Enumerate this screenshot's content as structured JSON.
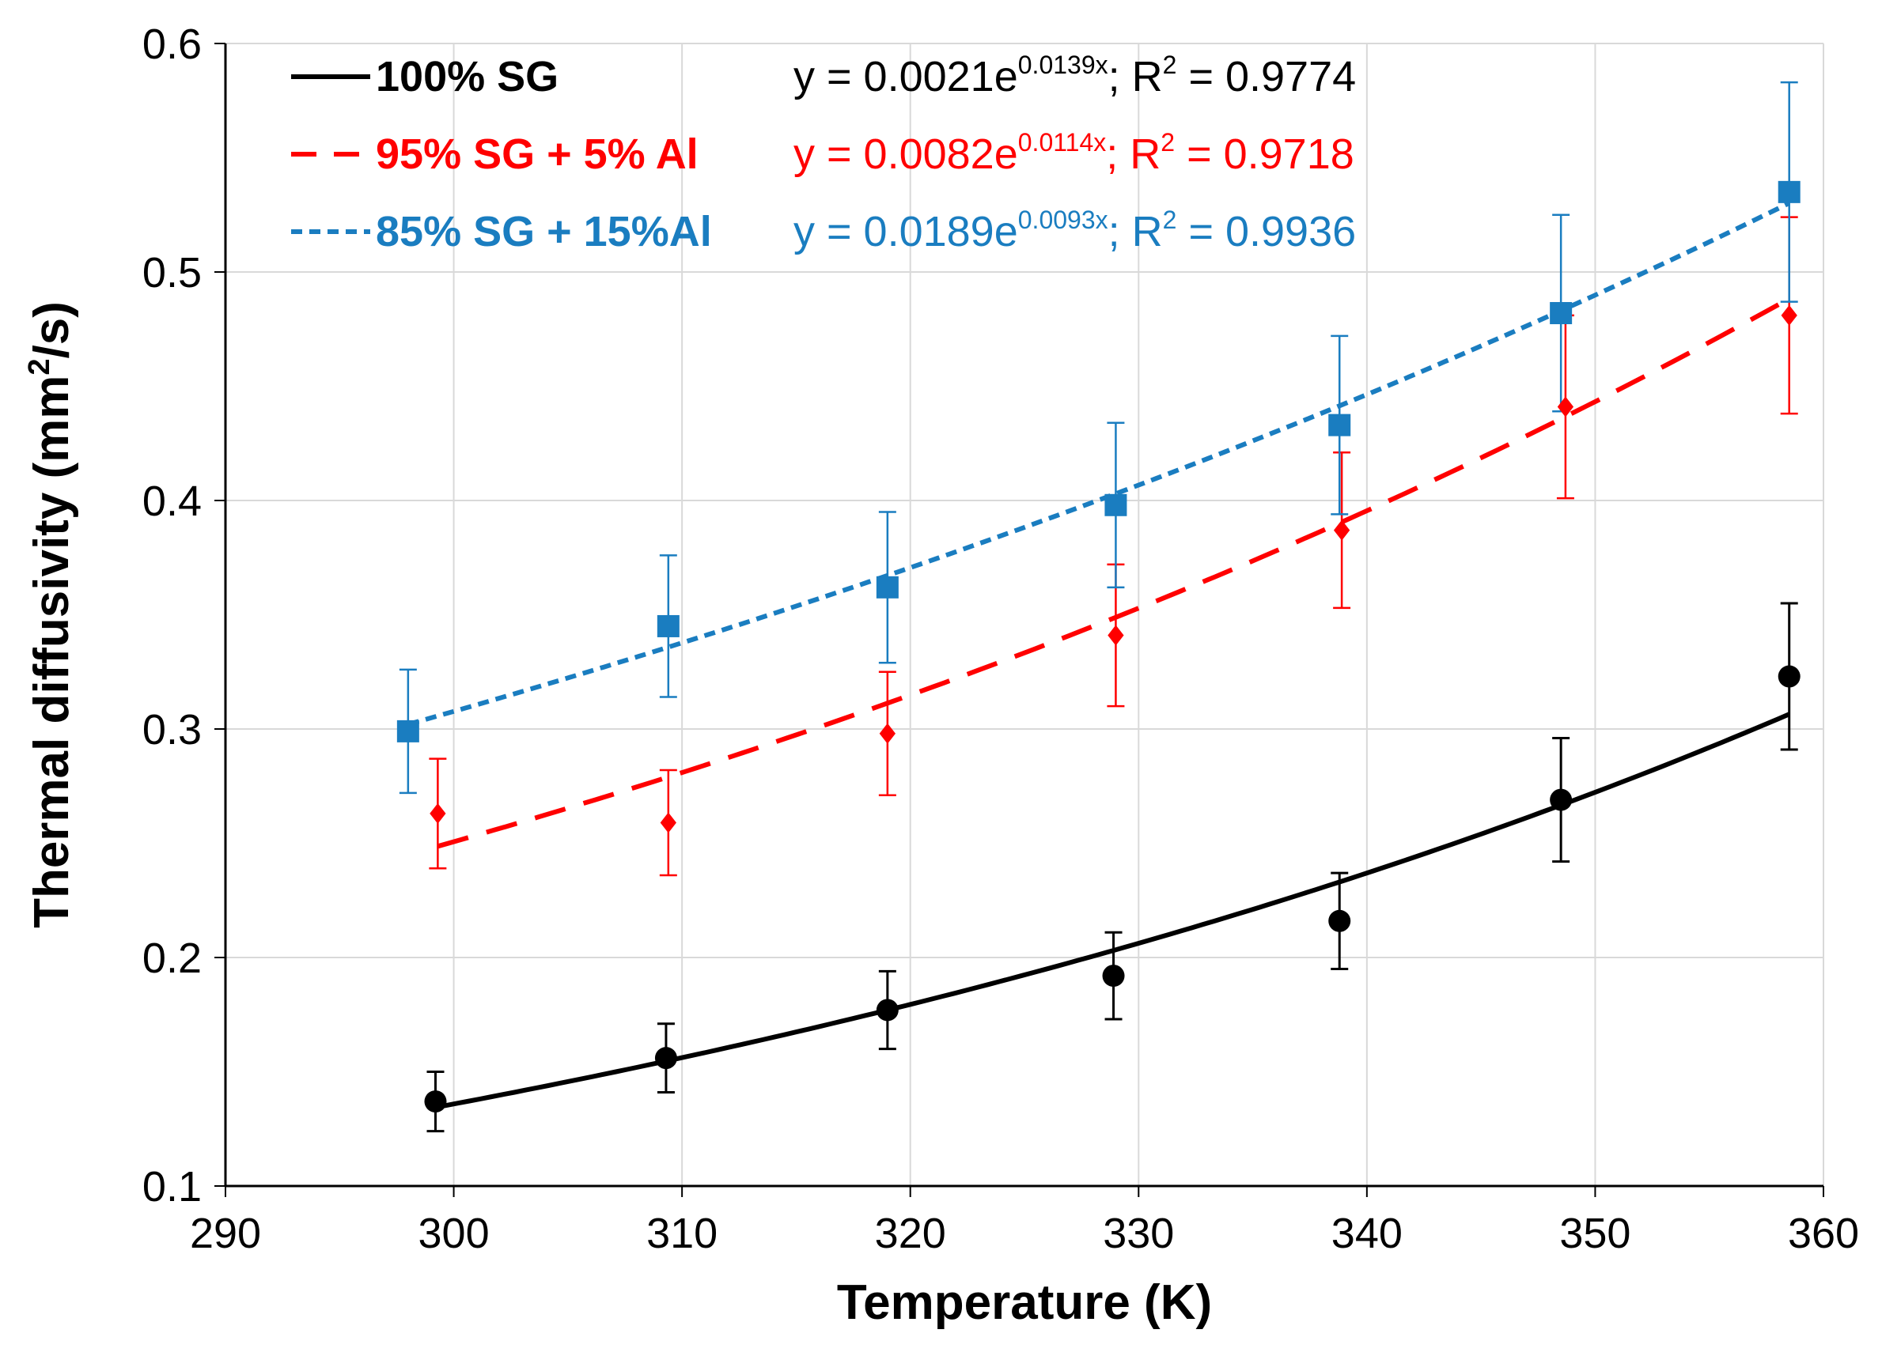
{
  "chart_data": {
    "type": "scatter",
    "xlabel": "Temperature (K)",
    "ylabel_parts": [
      "Thermal diffusivity (mm",
      "2",
      "/s)"
    ],
    "xlim": [
      290,
      360
    ],
    "ylim": [
      0.1,
      0.6
    ],
    "x_ticks": [
      "290",
      "300",
      "310",
      "320",
      "330",
      "340",
      "350",
      "360"
    ],
    "y_ticks": [
      "0.1",
      "0.2",
      "0.3",
      "0.4",
      "0.5",
      "0.6"
    ],
    "grid": true,
    "legend_position": "top-left",
    "series": [
      {
        "name": "100% SG",
        "color": "#000000",
        "marker": "circle",
        "line_style": "solid",
        "x": [
          299.2,
          309.3,
          319.0,
          328.9,
          338.8,
          348.5,
          358.5
        ],
        "y": [
          0.137,
          0.156,
          0.177,
          0.192,
          0.216,
          0.269,
          0.323
        ],
        "err": [
          0.013,
          0.015,
          0.017,
          0.019,
          0.021,
          0.027,
          0.032
        ],
        "fit": {
          "a": 0.0021,
          "b": 0.0139,
          "x_range": [
            299.2,
            358.5
          ]
        },
        "equation_parts": [
          "y = 0.0021e",
          "0.0139x",
          "; R",
          "2",
          " = 0.9774"
        ]
      },
      {
        "name": "95% SG + 5% Al",
        "color": "#ff0000",
        "marker": "diamond",
        "line_style": "dashed",
        "x": [
          299.3,
          309.4,
          319.0,
          329.0,
          338.9,
          348.7,
          358.5
        ],
        "y": [
          0.263,
          0.259,
          0.298,
          0.341,
          0.387,
          0.441,
          0.481
        ],
        "err": [
          0.024,
          0.023,
          0.027,
          0.031,
          0.034,
          0.04,
          0.043
        ],
        "fit": {
          "a": 0.0082,
          "b": 0.0114,
          "x_range": [
            299.3,
            358.5
          ]
        },
        "equation_parts": [
          "y = 0.0082e",
          "0.0114x",
          "; R",
          "2",
          " = 0.9718"
        ]
      },
      {
        "name": "85% SG + 15%Al",
        "color": "#1a7dc0",
        "marker": "square",
        "line_style": "dotted",
        "x": [
          298.0,
          309.4,
          319.0,
          329.0,
          338.8,
          348.5,
          358.5
        ],
        "y": [
          0.299,
          0.345,
          0.362,
          0.398,
          0.433,
          0.482,
          0.535
        ],
        "err": [
          0.027,
          0.031,
          0.033,
          0.036,
          0.039,
          0.043,
          0.048
        ],
        "fit": {
          "a": 0.0189,
          "b": 0.0093,
          "x_range": [
            298.0,
            358.5
          ]
        },
        "equation_parts": [
          "y = 0.0189e",
          "0.0093x",
          "; R",
          "2",
          " = 0.9936"
        ]
      }
    ]
  }
}
